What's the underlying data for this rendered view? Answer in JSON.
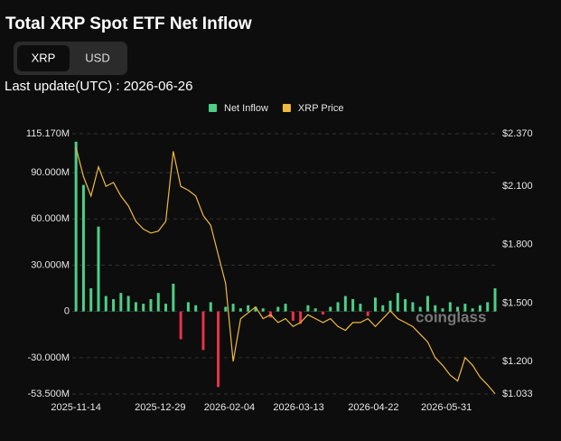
{
  "header": {
    "title": "Total XRP Spot ETF Net Inflow",
    "toggle": [
      "XRP",
      "USD"
    ],
    "last_update": "Last update(UTC) : 2026-06-26",
    "watermark": "coinglass"
  },
  "chart_data": {
    "type": "bar",
    "x": [
      "2025-11-14",
      "2025-11-18",
      "2025-11-22",
      "2025-11-26",
      "2025-11-30",
      "2025-12-04",
      "2025-12-08",
      "2025-12-12",
      "2025-12-16",
      "2025-12-20",
      "2025-12-24",
      "2025-12-28",
      "2026-01-01",
      "2026-01-05",
      "2026-01-09",
      "2026-01-13",
      "2026-01-17",
      "2026-01-21",
      "2026-01-25",
      "2026-01-29",
      "2026-02-02",
      "2026-02-06",
      "2026-02-10",
      "2026-02-14",
      "2026-02-18",
      "2026-02-22",
      "2026-02-26",
      "2026-03-02",
      "2026-03-06",
      "2026-03-10",
      "2026-03-14",
      "2026-03-18",
      "2026-03-22",
      "2026-03-26",
      "2026-03-30",
      "2026-04-03",
      "2026-04-07",
      "2026-04-11",
      "2026-04-15",
      "2026-04-19",
      "2026-04-23",
      "2026-04-27",
      "2026-05-01",
      "2026-05-05",
      "2026-05-09",
      "2026-05-13",
      "2026-05-17",
      "2026-05-21",
      "2026-05-25",
      "2026-05-29",
      "2026-06-02",
      "2026-06-06",
      "2026-06-10",
      "2026-06-14",
      "2026-06-18",
      "2026-06-22",
      "2026-06-26"
    ],
    "series": [
      {
        "name": "Net Inflow",
        "color": "#4ccf86",
        "negative_color": "#e8324a",
        "values": [
          110,
          82,
          15,
          55,
          10,
          8,
          12,
          10,
          6,
          5,
          8,
          12,
          5,
          18,
          -18,
          6,
          4,
          -25,
          6,
          -49,
          3,
          5,
          2,
          4,
          3,
          2,
          -4,
          3,
          5,
          -6,
          -8,
          4,
          2,
          -2,
          3,
          6,
          10,
          8,
          5,
          -3,
          9,
          4,
          7,
          12,
          8,
          6,
          3,
          10,
          4,
          2,
          6,
          3,
          5,
          2,
          4,
          6,
          15
        ]
      },
      {
        "name": "XRP Price",
        "color": "#f0b940",
        "axis": "y2",
        "values": [
          2.3,
          2.15,
          2.05,
          2.2,
          2.1,
          2.12,
          2.05,
          2.0,
          1.92,
          1.88,
          1.86,
          1.87,
          1.92,
          2.28,
          2.1,
          2.08,
          2.05,
          1.95,
          1.9,
          1.75,
          1.6,
          1.2,
          1.42,
          1.45,
          1.48,
          1.42,
          1.44,
          1.4,
          1.42,
          1.38,
          1.4,
          1.44,
          1.42,
          1.4,
          1.42,
          1.38,
          1.36,
          1.4,
          1.4,
          1.42,
          1.38,
          1.42,
          1.46,
          1.42,
          1.4,
          1.38,
          1.34,
          1.3,
          1.22,
          1.18,
          1.13,
          1.1,
          1.22,
          1.18,
          1.12,
          1.08,
          1.035
        ]
      }
    ],
    "xlim": [
      "2025-11-12",
      "2026-06-26"
    ],
    "xticks": [
      "2025-11-14",
      "2025-12-29",
      "2026-02-04",
      "2026-03-13",
      "2026-04-22",
      "2026-05-31"
    ],
    "ylim": [
      -53.5,
      115.17
    ],
    "yticks": [
      {
        "value": -53.5,
        "label": "-53.500M"
      },
      {
        "value": -30,
        "label": "-30.000M"
      },
      0,
      {
        "value": 30,
        "label": "30.000M"
      },
      {
        "value": 60,
        "label": "60.000M"
      },
      {
        "value": 90,
        "label": "90.000M"
      },
      {
        "value": 115.17,
        "label": "115.170M"
      }
    ],
    "y2lim": [
      1.033,
      2.37
    ],
    "y2ticks": [
      {
        "value": 1.033,
        "label": "$1.033"
      },
      {
        "value": 1.2,
        "label": "$1.200"
      },
      {
        "value": 1.5,
        "label": "$1.500"
      },
      {
        "value": 1.8,
        "label": "$1.800"
      },
      {
        "value": 2.1,
        "label": "$2.100"
      },
      {
        "value": 2.37,
        "label": "$2.370"
      }
    ],
    "grid": true,
    "legend": "top"
  }
}
